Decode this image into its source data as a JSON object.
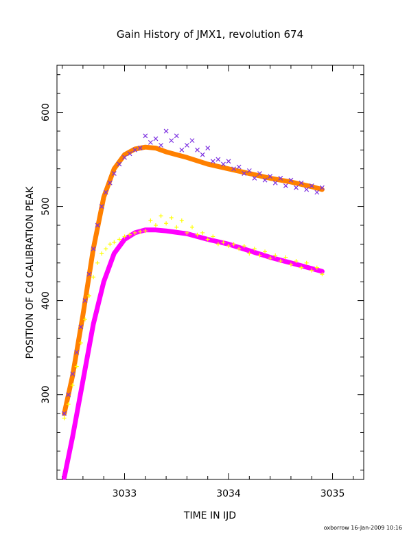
{
  "chart_data": {
    "type": "scatter",
    "title": "Gain History of JMX1, revolution 674",
    "xlabel": "TIME IN IJD",
    "ylabel": "POSITION OF Cd CALIBRATION PEAK",
    "xlim": [
      3032.35,
      3035.3
    ],
    "ylim": [
      210,
      650
    ],
    "x_ticks": [
      3033,
      3034,
      3035
    ],
    "x_tick_labels": [
      "3033",
      "3034",
      "3035"
    ],
    "y_ticks": [
      300,
      400,
      500,
      600
    ],
    "y_tick_labels": [
      "300",
      "400",
      "500",
      "600"
    ],
    "grid": false,
    "legend": "none",
    "series": [
      {
        "marker": "x",
        "color": "#7b2ee0",
        "points": [
          [
            3032.42,
            280
          ],
          [
            3032.46,
            300
          ],
          [
            3032.5,
            322
          ],
          [
            3032.54,
            345
          ],
          [
            3032.58,
            372
          ],
          [
            3032.62,
            400
          ],
          [
            3032.66,
            428
          ],
          [
            3032.7,
            455
          ],
          [
            3032.74,
            480
          ],
          [
            3032.78,
            500
          ],
          [
            3032.82,
            515
          ],
          [
            3032.86,
            525
          ],
          [
            3032.9,
            535
          ],
          [
            3032.95,
            545
          ],
          [
            3033.0,
            552
          ],
          [
            3033.05,
            556
          ],
          [
            3033.1,
            560
          ],
          [
            3033.15,
            562
          ],
          [
            3033.2,
            575
          ],
          [
            3033.25,
            568
          ],
          [
            3033.3,
            572
          ],
          [
            3033.35,
            565
          ],
          [
            3033.4,
            580
          ],
          [
            3033.45,
            570
          ],
          [
            3033.5,
            575
          ],
          [
            3033.55,
            560
          ],
          [
            3033.6,
            565
          ],
          [
            3033.65,
            570
          ],
          [
            3033.7,
            560
          ],
          [
            3033.75,
            555
          ],
          [
            3033.8,
            562
          ],
          [
            3033.85,
            548
          ],
          [
            3033.9,
            550
          ],
          [
            3033.95,
            545
          ],
          [
            3034.0,
            548
          ],
          [
            3034.05,
            540
          ],
          [
            3034.1,
            542
          ],
          [
            3034.15,
            535
          ],
          [
            3034.2,
            538
          ],
          [
            3034.25,
            530
          ],
          [
            3034.3,
            535
          ],
          [
            3034.35,
            528
          ],
          [
            3034.4,
            532
          ],
          [
            3034.45,
            525
          ],
          [
            3034.5,
            530
          ],
          [
            3034.55,
            522
          ],
          [
            3034.6,
            528
          ],
          [
            3034.65,
            520
          ],
          [
            3034.7,
            525
          ],
          [
            3034.75,
            518
          ],
          [
            3034.8,
            522
          ],
          [
            3034.85,
            515
          ],
          [
            3034.9,
            520
          ]
        ]
      },
      {
        "marker": "+",
        "color": "#ffff00",
        "points": [
          [
            3032.42,
            275
          ],
          [
            3032.46,
            290
          ],
          [
            3032.5,
            310
          ],
          [
            3032.54,
            330
          ],
          [
            3032.58,
            355
          ],
          [
            3032.62,
            380
          ],
          [
            3032.66,
            405
          ],
          [
            3032.7,
            425
          ],
          [
            3032.74,
            440
          ],
          [
            3032.78,
            450
          ],
          [
            3032.82,
            455
          ],
          [
            3032.86,
            460
          ],
          [
            3032.9,
            462
          ],
          [
            3032.95,
            465
          ],
          [
            3033.0,
            468
          ],
          [
            3033.05,
            470
          ],
          [
            3033.1,
            472
          ],
          [
            3033.15,
            473
          ],
          [
            3033.2,
            474
          ],
          [
            3033.25,
            485
          ],
          [
            3033.3,
            480
          ],
          [
            3033.35,
            490
          ],
          [
            3033.4,
            482
          ],
          [
            3033.45,
            488
          ],
          [
            3033.5,
            478
          ],
          [
            3033.55,
            485
          ],
          [
            3033.6,
            472
          ],
          [
            3033.65,
            478
          ],
          [
            3033.7,
            470
          ],
          [
            3033.75,
            472
          ],
          [
            3033.8,
            465
          ],
          [
            3033.85,
            468
          ],
          [
            3033.9,
            460
          ],
          [
            3033.95,
            462
          ],
          [
            3034.0,
            458
          ],
          [
            3034.05,
            460
          ],
          [
            3034.1,
            455
          ],
          [
            3034.15,
            458
          ],
          [
            3034.2,
            450
          ],
          [
            3034.25,
            455
          ],
          [
            3034.3,
            448
          ],
          [
            3034.35,
            452
          ],
          [
            3034.4,
            445
          ],
          [
            3034.45,
            448
          ],
          [
            3034.5,
            442
          ],
          [
            3034.55,
            446
          ],
          [
            3034.6,
            438
          ],
          [
            3034.65,
            442
          ],
          [
            3034.7,
            435
          ],
          [
            3034.75,
            440
          ],
          [
            3034.8,
            432
          ],
          [
            3034.85,
            435
          ],
          [
            3034.9,
            428
          ]
        ]
      }
    ],
    "fits": [
      {
        "color": "#ff8000",
        "points": [
          [
            3032.42,
            280
          ],
          [
            3032.5,
            320
          ],
          [
            3032.6,
            385
          ],
          [
            3032.7,
            455
          ],
          [
            3032.8,
            510
          ],
          [
            3032.9,
            540
          ],
          [
            3033.0,
            555
          ],
          [
            3033.1,
            561
          ],
          [
            3033.2,
            563
          ],
          [
            3033.3,
            562
          ],
          [
            3033.4,
            558
          ],
          [
            3033.6,
            552
          ],
          [
            3033.8,
            545
          ],
          [
            3034.0,
            540
          ],
          [
            3034.2,
            535
          ],
          [
            3034.4,
            530
          ],
          [
            3034.6,
            526
          ],
          [
            3034.8,
            521
          ],
          [
            3034.9,
            518
          ]
        ]
      },
      {
        "color": "#ff00ff",
        "points": [
          [
            3032.42,
            212
          ],
          [
            3032.5,
            255
          ],
          [
            3032.6,
            315
          ],
          [
            3032.7,
            375
          ],
          [
            3032.8,
            420
          ],
          [
            3032.9,
            450
          ],
          [
            3033.0,
            465
          ],
          [
            3033.1,
            472
          ],
          [
            3033.2,
            475
          ],
          [
            3033.3,
            475
          ],
          [
            3033.4,
            474
          ],
          [
            3033.6,
            471
          ],
          [
            3033.8,
            465
          ],
          [
            3034.0,
            460
          ],
          [
            3034.2,
            453
          ],
          [
            3034.4,
            446
          ],
          [
            3034.6,
            440
          ],
          [
            3034.8,
            434
          ],
          [
            3034.9,
            431
          ]
        ]
      }
    ]
  },
  "footer": {
    "credit": "oxborrow 16-Jan-2009 10:16"
  }
}
